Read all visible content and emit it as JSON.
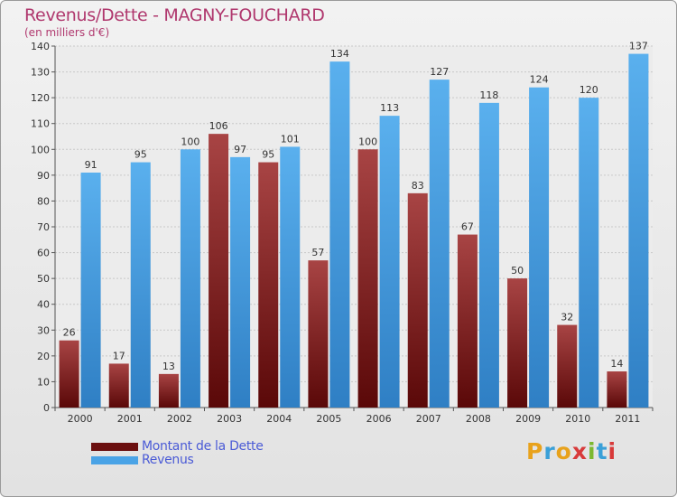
{
  "title": "Revenus/Dette - MAGNY-FOUCHARD",
  "subtitle": "(en milliers d'€)",
  "colors": {
    "dette": "#7a1a1a",
    "revenus": "#4aa3e6",
    "title": "#b0386e",
    "legend_text": "#4b5bd6"
  },
  "legend": [
    {
      "label": "Montant de la Dette",
      "color": "#6b0f0f"
    },
    {
      "label": "Revenus",
      "color": "#4aa3e6"
    }
  ],
  "logo": "Proxiti",
  "chart_data": {
    "type": "bar",
    "title": "Revenus/Dette - MAGNY-FOUCHARD",
    "subtitle": "(en milliers d'€)",
    "categories": [
      "2000",
      "2001",
      "2002",
      "2003",
      "2004",
      "2005",
      "2006",
      "2007",
      "2008",
      "2009",
      "2010",
      "2011"
    ],
    "series": [
      {
        "name": "Montant de la Dette",
        "values": [
          26,
          17,
          13,
          106,
          95,
          57,
          100,
          83,
          67,
          50,
          32,
          14
        ]
      },
      {
        "name": "Revenus",
        "values": [
          91,
          95,
          100,
          97,
          101,
          134,
          113,
          127,
          118,
          124,
          120,
          137
        ]
      }
    ],
    "ylim": [
      0,
      140
    ],
    "yticks": [
      0,
      10,
      20,
      30,
      40,
      50,
      60,
      70,
      80,
      90,
      100,
      110,
      120,
      130,
      140
    ],
    "grid": true,
    "legend_position": "bottom-left"
  }
}
